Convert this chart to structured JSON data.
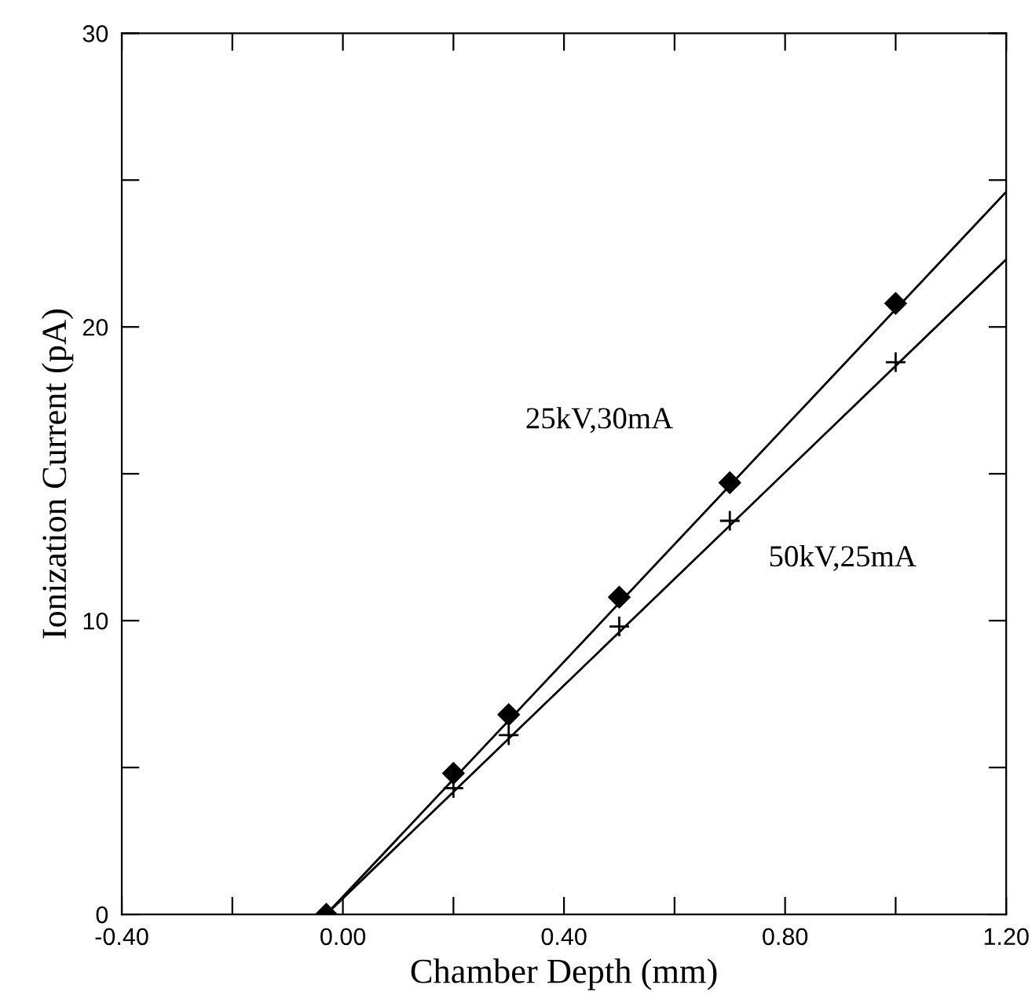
{
  "chart_data": {
    "type": "scatter",
    "xlabel": "Chamber Depth (mm)",
    "ylabel": "Ionization Current (pA)",
    "xlim": [
      -0.4,
      1.2
    ],
    "ylim": [
      0,
      30
    ],
    "xticks": [
      {
        "value": -0.4,
        "label": "-0.40"
      },
      {
        "value": -0.2,
        "label": null
      },
      {
        "value": 0,
        "label": "0.00"
      },
      {
        "value": 0.2,
        "label": null
      },
      {
        "value": 0.4,
        "label": "0.40"
      },
      {
        "value": 0.6,
        "label": null
      },
      {
        "value": 0.8,
        "label": "0.80"
      },
      {
        "value": 1.0,
        "label": null
      },
      {
        "value": 1.2,
        "label": "1.20"
      }
    ],
    "yticks": [
      0,
      {
        "value": 5,
        "label": null
      },
      10,
      {
        "value": 15,
        "label": null
      },
      20,
      {
        "value": 25,
        "label": null
      },
      30
    ],
    "grid": false,
    "legend": false,
    "series": [
      {
        "name": "25kV,30mA",
        "marker": "diamond",
        "color": "#000000",
        "x": [
          -0.03,
          0.2,
          0.3,
          0.5,
          0.7,
          1.0
        ],
        "values": [
          0,
          4.8,
          6.8,
          10.8,
          14.7,
          20.8
        ]
      },
      {
        "name": "50kV,25mA",
        "marker": "cross",
        "color": "#000000",
        "x": [
          0.2,
          0.3,
          0.5,
          0.7,
          1.0
        ],
        "values": [
          4.3,
          6.1,
          9.8,
          13.4,
          18.8
        ]
      },
      {
        "type": "line",
        "line_style": "solid",
        "color": "#000000",
        "x": [
          -0.03,
          1.2
        ],
        "values": [
          0,
          24.6
        ]
      },
      {
        "type": "line",
        "line_style": "solid",
        "color": "#000000",
        "x": [
          -0.03,
          1.2
        ],
        "values": [
          0,
          22.3
        ]
      }
    ]
  }
}
